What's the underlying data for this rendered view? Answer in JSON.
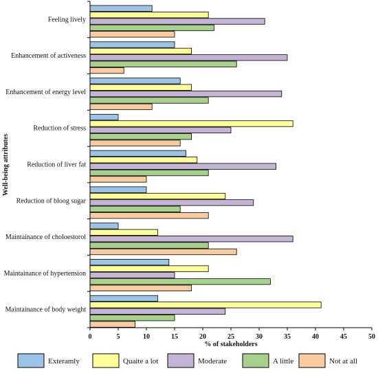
{
  "chart_data": {
    "type": "bar",
    "orientation": "horizontal",
    "categories": [
      "Feeling lively",
      "Enhancement of activeness",
      "Enhancement of energy level",
      "Reduction of stress",
      "Reduction of liver fat",
      "Reduction of bloog sugar",
      "Maintainance of choloestorol",
      "Maintainance of hypertension",
      "Maintainance of body weight"
    ],
    "series": [
      {
        "name": "Exteramly",
        "color": "#9dc3e6",
        "values": [
          11,
          15,
          16,
          5,
          17,
          10,
          5,
          14,
          12
        ]
      },
      {
        "name": "Quaite a lot",
        "color": "#ffff99",
        "values": [
          21,
          18,
          18,
          36,
          19,
          24,
          12,
          21,
          41
        ]
      },
      {
        "name": "Moderate",
        "color": "#c5b4d6",
        "values": [
          31,
          35,
          34,
          25,
          33,
          29,
          36,
          15,
          24
        ]
      },
      {
        "name": "A little",
        "color": "#a9d18e",
        "values": [
          22,
          26,
          21,
          18,
          21,
          16,
          21,
          32,
          15
        ]
      },
      {
        "name": "Not at all",
        "color": "#f8cba0",
        "values": [
          15,
          6,
          11,
          16,
          10,
          21,
          26,
          18,
          8
        ]
      }
    ],
    "xlabel": "% of stakeholders",
    "ylabel": "Well-being attributes",
    "xlim": [
      0,
      50
    ],
    "xticks": [
      "0",
      "5",
      "10",
      "15",
      "20",
      "25",
      "30",
      "35",
      "40",
      "45",
      "50"
    ],
    "grid": false,
    "legend_position": "bottom"
  }
}
